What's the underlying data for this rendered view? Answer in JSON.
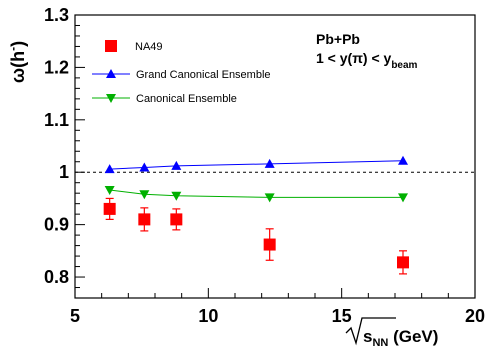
{
  "chart_data": {
    "type": "scatter",
    "xlim": [
      5,
      20
    ],
    "ylim": [
      0.76,
      1.3
    ],
    "x_ticks": [
      "5",
      "10",
      "15",
      "20"
    ],
    "y_ticks": [
      "0.8",
      "0.9",
      "1",
      "1.1",
      "1.2",
      "1.3"
    ],
    "x_tick_values": [
      5,
      10,
      15,
      20
    ],
    "y_tick_values": [
      0.8,
      0.9,
      1.0,
      1.1,
      1.2,
      1.3
    ],
    "xlabel": {
      "sqrt_arg": "s",
      "subscript": "NN",
      "unit": " (GeV)"
    },
    "ylabel": {
      "symbol": "ω(h",
      "superscript": "-",
      "close": ")"
    },
    "reference_line": {
      "y": 1.0,
      "style": "dashed"
    },
    "grid": false,
    "legend_position": "top-left",
    "annotations": {
      "line1": "Pb+Pb",
      "line2_prefix": "1 < y(π) < y",
      "line2_subscript": "beam"
    },
    "series": [
      {
        "name": "NA49",
        "marker": "square",
        "color": "#ff0000",
        "points": [
          {
            "x": 6.3,
            "y": 0.93,
            "err": 0.02
          },
          {
            "x": 7.6,
            "y": 0.91,
            "err": 0.022
          },
          {
            "x": 8.8,
            "y": 0.91,
            "err": 0.02
          },
          {
            "x": 12.3,
            "y": 0.862,
            "err": 0.03
          },
          {
            "x": 17.3,
            "y": 0.828,
            "err": 0.022
          }
        ]
      },
      {
        "name": "Grand Canonical Ensemble",
        "marker": "triangle-up",
        "color": "#0000ff",
        "points": [
          {
            "x": 6.3,
            "y": 1.006
          },
          {
            "x": 7.6,
            "y": 1.009
          },
          {
            "x": 8.8,
            "y": 1.012
          },
          {
            "x": 12.3,
            "y": 1.016
          },
          {
            "x": 17.3,
            "y": 1.022
          }
        ]
      },
      {
        "name": "Canonical Ensemble",
        "marker": "triangle-down",
        "color": "#00b000",
        "points": [
          {
            "x": 6.3,
            "y": 0.966
          },
          {
            "x": 7.6,
            "y": 0.958
          },
          {
            "x": 8.8,
            "y": 0.955
          },
          {
            "x": 12.3,
            "y": 0.952
          },
          {
            "x": 17.3,
            "y": 0.952
          }
        ]
      }
    ]
  }
}
